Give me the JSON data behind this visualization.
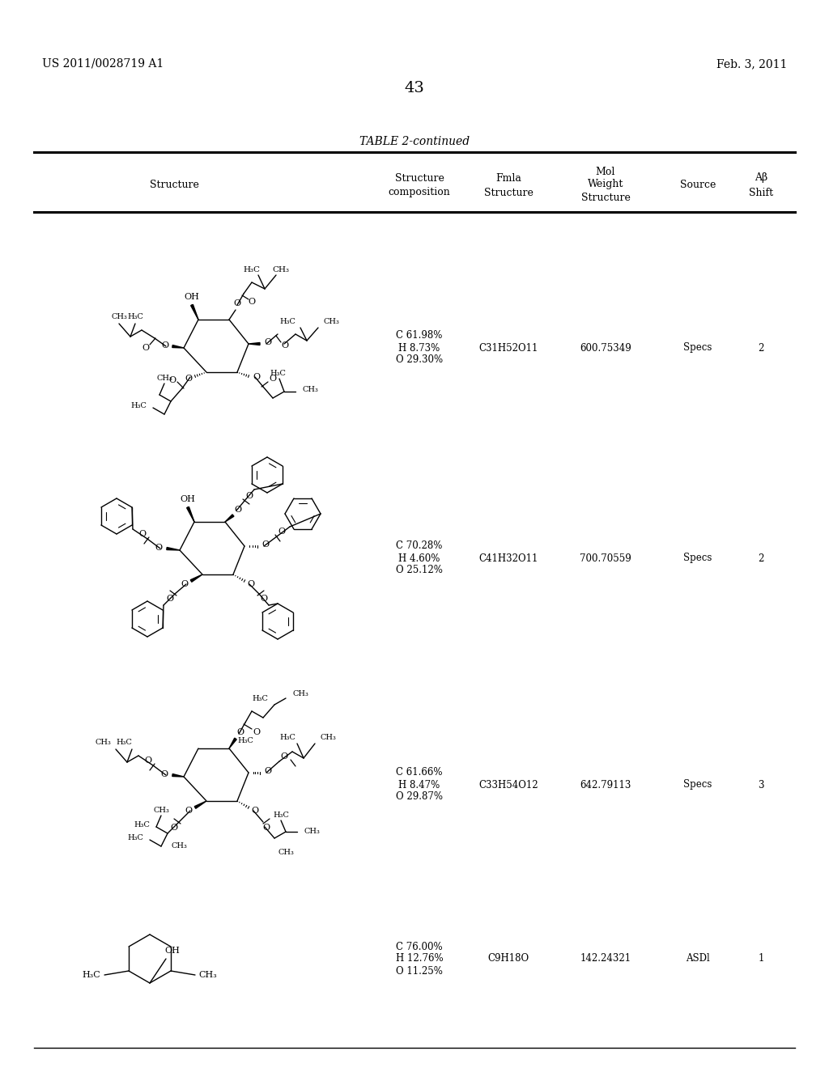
{
  "background_color": "#ffffff",
  "header_left": "US 2011/0028719 A1",
  "header_right": "Feb. 3, 2011",
  "page_number": "43",
  "table_title": "TABLE 2-continued",
  "col_headers_line1": [
    "",
    "Structure",
    "Fmla",
    "Mol",
    "",
    "Aβ"
  ],
  "col_headers_line2": [
    "Structure",
    "composition",
    "Structure",
    "Weight",
    "Source",
    "Shift"
  ],
  "col_headers_line0": [
    "",
    "",
    "",
    "Structure",
    "",
    ""
  ],
  "rows": [
    {
      "composition": "C 61.98%\nH 8.73%\nO 29.30%",
      "fmla": "C31H52O11",
      "mol_weight": "600.75349",
      "source": "Specs",
      "ab_shift": "2"
    },
    {
      "composition": "C 70.28%\nH 4.60%\nO 25.12%",
      "fmla": "C41H32O11",
      "mol_weight": "700.70559",
      "source": "Specs",
      "ab_shift": "2"
    },
    {
      "composition": "C 61.66%\nH 8.47%\nO 29.87%",
      "fmla": "C33H54O12",
      "mol_weight": "642.79113",
      "source": "Specs",
      "ab_shift": "3"
    },
    {
      "composition": "C 76.00%\nH 12.76%\nO 11.25%",
      "fmla": "C9H18O",
      "mol_weight": "142.24321",
      "source": "ASDl",
      "ab_shift": "1"
    }
  ]
}
